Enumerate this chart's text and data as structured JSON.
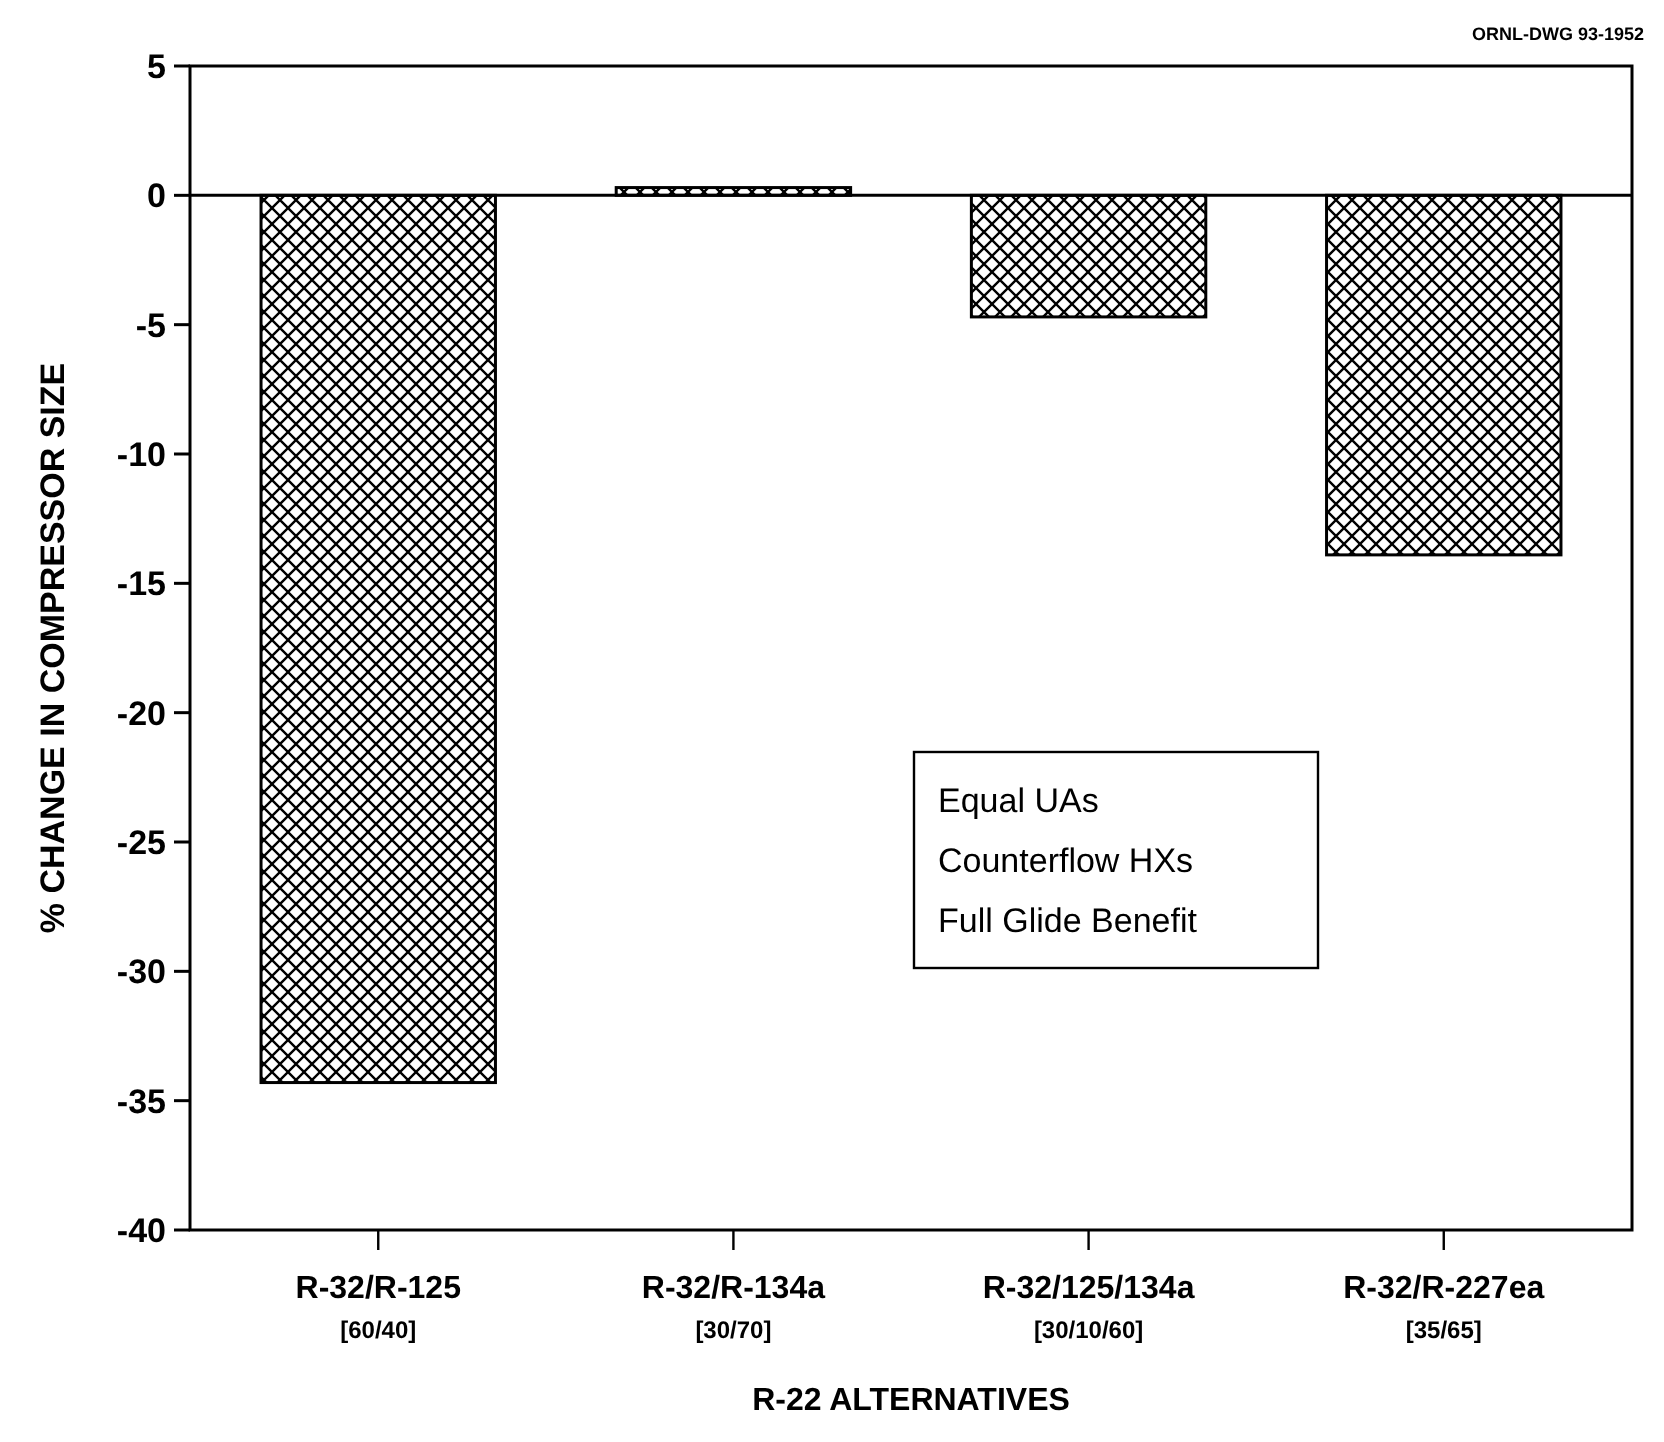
{
  "chart_data": {
    "type": "bar",
    "xlabel": "R-22 ALTERNATIVES",
    "ylabel": "% CHANGE IN COMPRESSOR SIZE",
    "categories": [
      "R-32/R-125\n[60/40]",
      "R-32/R-134a\n[30/70]",
      "R-32/125/134a\n[30/10/60]",
      "R-32/R-227ea\n[35/65]"
    ],
    "values": [
      -34.3,
      0.3,
      -4.7,
      -13.9
    ],
    "color": "#000000",
    "ylim": [
      -40,
      5
    ],
    "yticks": [
      -40,
      -35,
      -30,
      -25,
      -20,
      -15,
      -10,
      -5,
      0,
      5
    ],
    "annotations": [
      "ORNL-DWG 93-1952",
      "Equal UAs",
      "Counterflow HXs",
      "Full Glide Benefit"
    ]
  }
}
